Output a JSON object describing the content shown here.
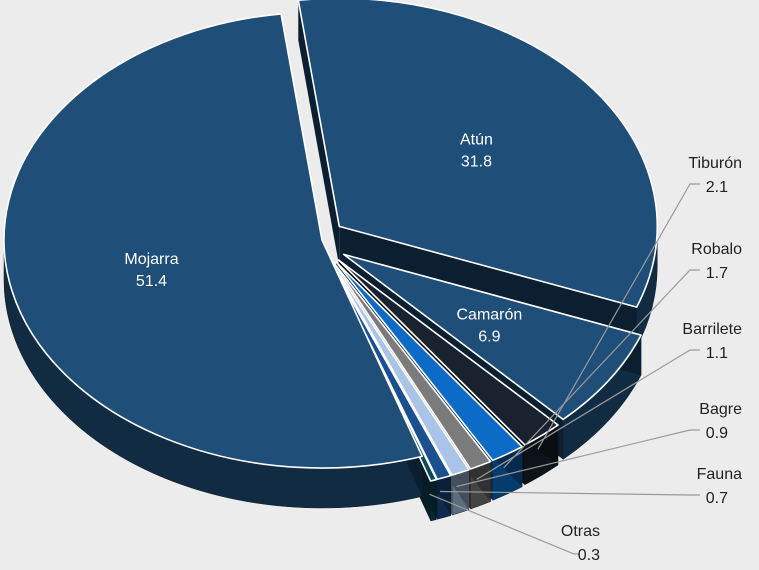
{
  "chart_data": {
    "type": "pie",
    "title": "",
    "categories": [
      "Atún",
      "Camarón",
      "Tiburón",
      "Robalo",
      "Barrilete",
      "Bagre",
      "Fauna",
      "Otras",
      "Mojarra"
    ],
    "values": [
      31.8,
      6.9,
      2.1,
      1.7,
      1.1,
      0.9,
      0.7,
      0.3,
      51.4
    ],
    "colors": [
      "#1f4e79",
      "#1f4e79",
      "#1a2230",
      "#0b6bc6",
      "#7b7b7b",
      "#a9c4e6",
      "#1b4f8e",
      "#0b4a5e",
      "#1f4e79"
    ],
    "legend": "none",
    "data_labels": [
      {
        "name": "Atún",
        "value": "31.8",
        "inside": true
      },
      {
        "name": "Camarón",
        "value": "6.9",
        "inside": true
      },
      {
        "name": "Tiburón",
        "value": "2.1",
        "inside": false
      },
      {
        "name": "Robalo",
        "value": "1.7",
        "inside": false
      },
      {
        "name": "Barrilete",
        "value": "1.1",
        "inside": false
      },
      {
        "name": "Bagre",
        "value": "0.9",
        "inside": false
      },
      {
        "name": "Fauna",
        "value": "0.7",
        "inside": false
      },
      {
        "name": "Otras",
        "value": "0.3",
        "inside": false
      },
      {
        "name": "Mojarra",
        "value": "51.4",
        "inside": true
      }
    ]
  }
}
